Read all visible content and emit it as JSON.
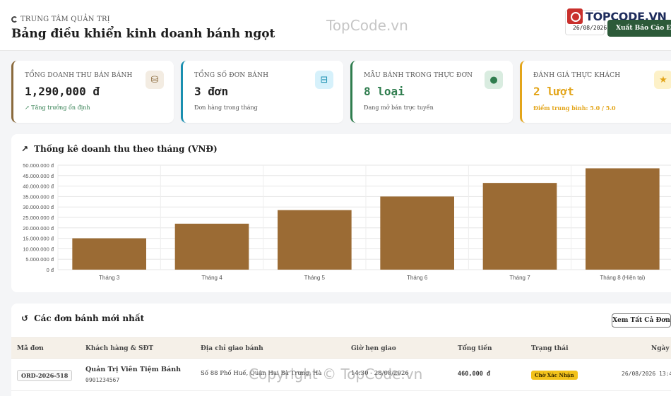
{
  "header": {
    "breadcrumb": "TRUNG TÂM QUẢN TRỊ",
    "title": "Bảng điều khiển kinh doanh bánh ngọt",
    "date": "26/08/2026",
    "logo": "TOPCODE.VN",
    "export_label": "Xuất Báo Cáo Excel"
  },
  "watermark": {
    "top": "TopCode.vn",
    "bottom": "Copyright © TopCode.vn"
  },
  "stats": [
    {
      "label": "TỔNG DOANH THU BÁN BÁNH",
      "value": "1,290,000 đ",
      "sub": "↗ Tăng trưởng ổn định",
      "color": "#8a6a3c",
      "icon": "coins-icon"
    },
    {
      "label": "TỔNG SỐ ĐƠN BÁNH",
      "value": "3 đơn",
      "sub": "Đơn hàng trong tháng",
      "color": "#1a8fb0",
      "icon": "basket-icon"
    },
    {
      "label": "MẪU BÁNH TRONG THỰC ĐƠN",
      "value": "8 loại",
      "sub": "Đang mở bán trực tuyến",
      "color": "#2f7d4e",
      "icon": "cookie-icon"
    },
    {
      "label": "ĐÁNH GIÁ THỰC KHÁCH",
      "value": "2 lượt",
      "sub": "Điểm trung bình: 5.0 / 5.0",
      "color": "#e3a51a",
      "icon": "star-icon"
    }
  ],
  "chart_panel": {
    "title": "Thống kê doanh thu theo tháng (VNĐ)"
  },
  "chart_data": {
    "type": "bar",
    "categories": [
      "Tháng 3",
      "Tháng 4",
      "Tháng 5",
      "Tháng 6",
      "Tháng 7",
      "Tháng 8 (Hiện tại)"
    ],
    "values": [
      15000000,
      22000000,
      28500000,
      35000000,
      41500000,
      48500000
    ],
    "ylim": [
      0,
      50000000
    ],
    "yticks": [
      "0 đ",
      "5.000.000 đ",
      "10.000.000 đ",
      "15.000.000 đ",
      "20.000.000 đ",
      "25.000.000 đ",
      "30.000.000 đ",
      "35.000.000 đ",
      "40.000.000 đ",
      "45.000.000 đ",
      "50.000.000 đ"
    ],
    "grid": true,
    "bar_color": "#9b6b34"
  },
  "orders": {
    "title": "Các đơn bánh mới nhất",
    "view_all": "Xem Tất Cả Đơn",
    "columns": [
      "Mã đơn",
      "Khách hàng & SĐT",
      "Địa chỉ giao bánh",
      "Giờ hẹn giao",
      "Tổng tiền",
      "Trạng thái",
      "Ngày đặt"
    ],
    "rows": [
      {
        "code": "ORD-2026-518",
        "customer": "Quản Trị Viên Tiệm Bánh",
        "phone": "0901234567",
        "address": "Số 88 Phố Huế, Quận Hai Bà Trưng, Hà",
        "time": "14:30 - 28/08/2026",
        "total": "460,000 đ",
        "status": "Chờ Xác Nhận",
        "date": "26/08/2026 13:4"
      }
    ]
  }
}
